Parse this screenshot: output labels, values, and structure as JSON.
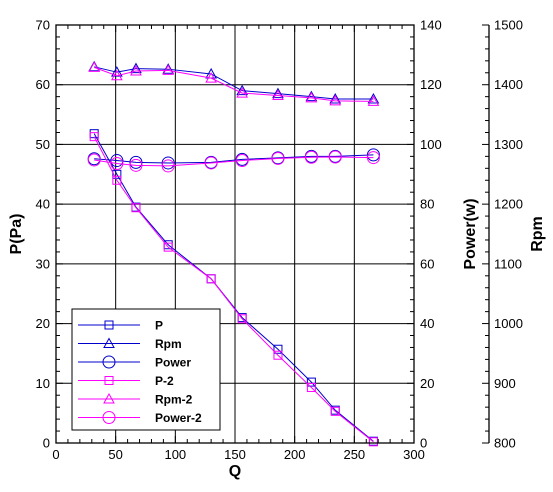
{
  "chart_data": {
    "type": "line",
    "title": "",
    "grid": true,
    "legend_position": "bottom-left",
    "x": {
      "label": "Q",
      "range": [
        0,
        300
      ],
      "ticks": [
        0,
        50,
        100,
        150,
        200,
        250,
        300
      ]
    },
    "y_axes": {
      "left": {
        "label": "P(Pa)",
        "range": [
          0,
          70
        ],
        "ticks": [
          0,
          10,
          20,
          30,
          40,
          50,
          60,
          70
        ]
      },
      "right": {
        "label": "Power(w)",
        "range": [
          0,
          140
        ],
        "ticks": [
          0,
          20,
          40,
          60,
          80,
          100,
          120,
          140
        ]
      },
      "rpm": {
        "label": "Rpm",
        "range": [
          800,
          1500
        ],
        "ticks": [
          800,
          900,
          1000,
          1100,
          1200,
          1300,
          1400,
          1500
        ]
      }
    },
    "series": [
      {
        "name": "P",
        "axis": "left",
        "marker": "square",
        "color": "#0000cc",
        "x": [
          32,
          51,
          67,
          94,
          130,
          156,
          186,
          214,
          234,
          266
        ],
        "y": [
          51.8,
          45.0,
          39.5,
          33.2,
          27.5,
          21.0,
          15.7,
          10.2,
          5.5,
          0.3
        ]
      },
      {
        "name": "Rpm",
        "axis": "rpm",
        "marker": "triangle",
        "color": "#0000cc",
        "x": [
          32,
          51,
          67,
          94,
          130,
          156,
          186,
          214,
          234,
          266
        ],
        "y": [
          1430,
          1421,
          1427,
          1426,
          1418,
          1390,
          1385,
          1380,
          1376,
          1376
        ]
      },
      {
        "name": "Power",
        "axis": "right",
        "marker": "circle",
        "color": "#0000cc",
        "x": [
          32,
          51,
          67,
          94,
          130,
          156,
          186,
          214,
          234,
          266
        ],
        "y": [
          95.2,
          94.6,
          94.0,
          93.8,
          94.0,
          95.0,
          95.5,
          96.0,
          96.0,
          96.5
        ]
      },
      {
        "name": "P-2",
        "axis": "left",
        "marker": "square",
        "color": "#ff00ff",
        "x": [
          32,
          51,
          67,
          94,
          130,
          156,
          186,
          214,
          234,
          266
        ],
        "y": [
          51.3,
          44.0,
          39.4,
          32.8,
          27.5,
          20.8,
          14.7,
          9.3,
          5.3,
          0.2
        ]
      },
      {
        "name": "Rpm-2",
        "axis": "rpm",
        "marker": "triangle",
        "color": "#ff00ff",
        "x": [
          32,
          51,
          67,
          94,
          130,
          156,
          186,
          214,
          234,
          266
        ],
        "y": [
          1429,
          1415,
          1423,
          1424,
          1411,
          1386,
          1382,
          1378,
          1373,
          1372
        ]
      },
      {
        "name": "Power-2",
        "axis": "right",
        "marker": "circle",
        "color": "#ff00ff",
        "x": [
          32,
          51,
          67,
          94,
          130,
          156,
          186,
          214,
          234,
          266
        ],
        "y": [
          94.8,
          93.6,
          93.0,
          92.8,
          93.8,
          94.6,
          95.3,
          95.7,
          95.8,
          95.6
        ]
      }
    ]
  }
}
